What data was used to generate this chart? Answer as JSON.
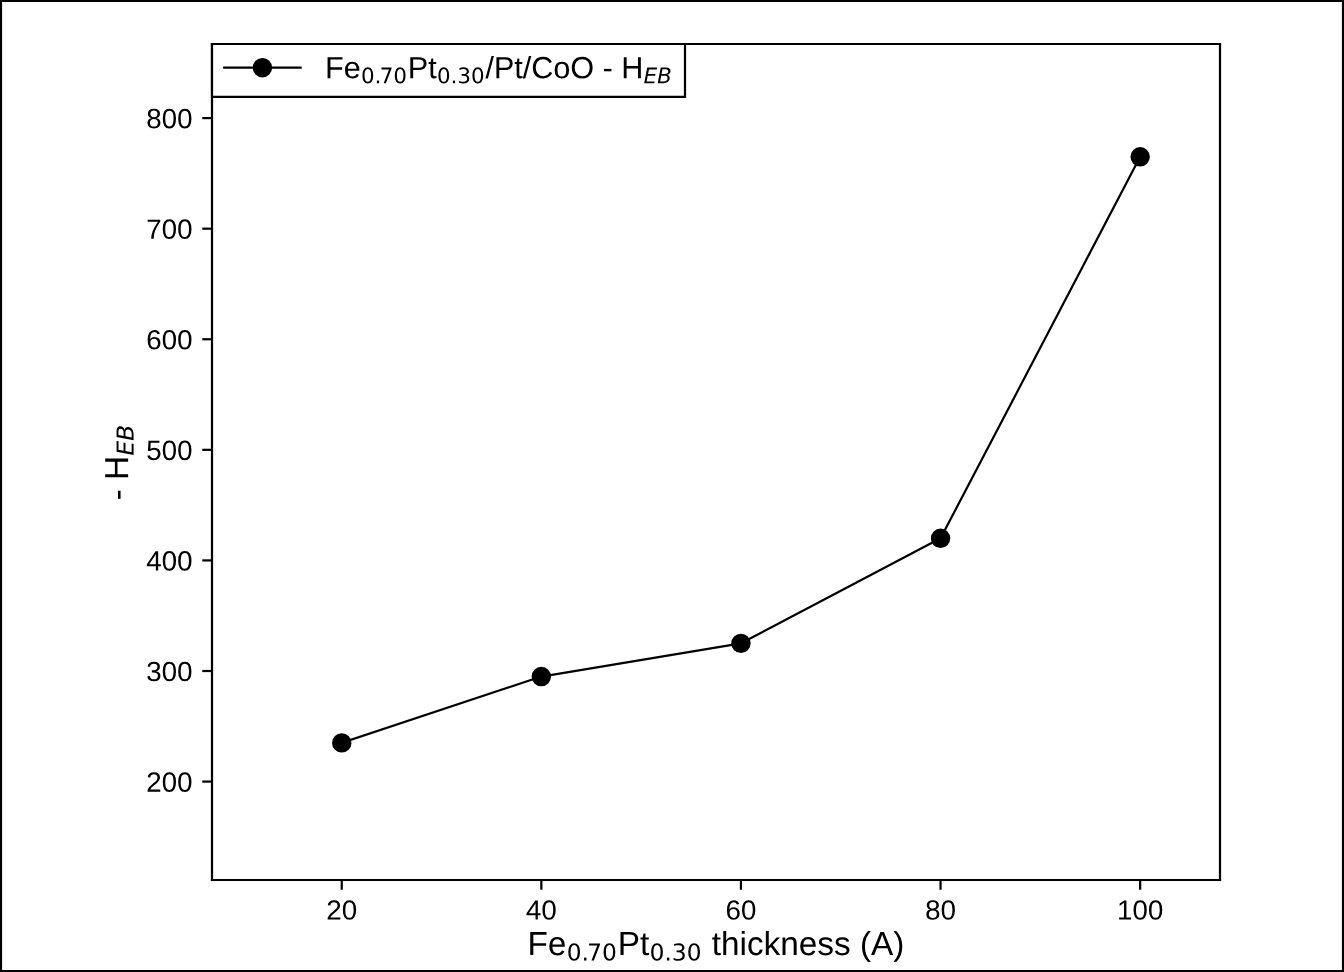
{
  "chart_data": {
    "type": "line",
    "xlabel": "Fe$_{0.70}$Pt$_{0.30}$ thickness (A)",
    "ylabel": "- H$_{EB}$",
    "x": [
      20,
      40,
      60,
      80,
      100
    ],
    "series": [
      {
        "name": "Fe$_{0.70}$Pt$_{0.30}$/Pt/CoO - H$_{EB}$",
        "color": "#000000",
        "values": [
          235,
          295,
          325,
          420,
          765
        ]
      }
    ],
    "xlim": [
      7,
      108
    ],
    "xticks": [
      20,
      40,
      60,
      80,
      100
    ],
    "ylim": [
      111,
      867
    ],
    "yticks": [
      200,
      300,
      400,
      500,
      600,
      700,
      800
    ],
    "marker": "circle",
    "line_style": "solid",
    "legend": "top left",
    "grid": false
  }
}
